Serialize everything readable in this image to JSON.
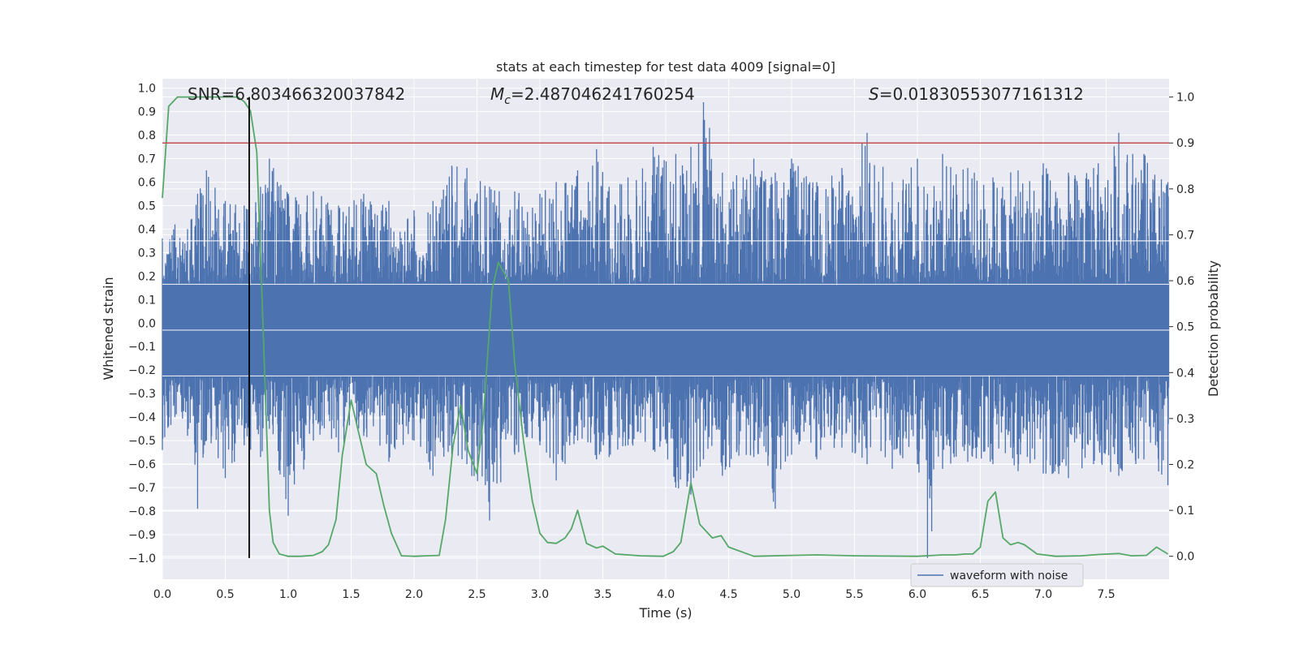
{
  "chart_data": {
    "type": "line",
    "title": "stats at each timestep for test data 4009 [signal=0]",
    "xlabel": "Time (s)",
    "ylabel_left": "Whitened strain",
    "ylabel_right": "Detection probability",
    "xlim": [
      0.0,
      8.0
    ],
    "ylim_left": [
      -1.09,
      1.04
    ],
    "ylim_right": [
      -0.05,
      1.04
    ],
    "x_ticks": [
      "0.0",
      "0.5",
      "1.0",
      "1.5",
      "2.0",
      "2.5",
      "3.0",
      "3.5",
      "4.0",
      "4.5",
      "5.0",
      "5.5",
      "6.0",
      "6.5",
      "7.0",
      "7.5"
    ],
    "y_ticks_left": [
      "1.0",
      "0.9",
      "0.8",
      "0.7",
      "0.6",
      "0.5",
      "0.4",
      "0.3",
      "0.2",
      "0.1",
      "0.0",
      "−0.1",
      "−0.2",
      "−0.3",
      "−0.4",
      "−0.5",
      "−0.6",
      "−0.7",
      "−0.8",
      "−0.9",
      "−1.0"
    ],
    "y_ticks_right": [
      "1.0",
      "0.9",
      "0.8",
      "0.7",
      "0.6",
      "0.5",
      "0.4",
      "0.3",
      "0.2",
      "0.1",
      "0.0"
    ],
    "annotations": {
      "snr": "SNR=6.803466320037842",
      "mc_symbol": "M",
      "mc_sub": "c",
      "mc_value": "=2.487046241760254",
      "s_symbol": "S",
      "s_value": "=0.01830553077161312"
    },
    "threshold": {
      "value": 0.9,
      "axis": "right",
      "color": "#c44e52"
    },
    "marker_time": {
      "value": 0.69,
      "color": "#000000"
    },
    "legend": {
      "label": "waveform with noise",
      "placement": "lower-right"
    },
    "series": [
      {
        "name": "waveform with noise",
        "axis": "left",
        "color": "#4c72b0",
        "envelope_points": [
          [
            0.0,
            0.36,
            -0.54
          ],
          [
            0.1,
            0.42,
            -0.4
          ],
          [
            0.2,
            0.4,
            -0.48
          ],
          [
            0.28,
            0.55,
            -0.79
          ],
          [
            0.35,
            0.65,
            -0.5
          ],
          [
            0.5,
            0.52,
            -0.66
          ],
          [
            0.65,
            0.5,
            -0.52
          ],
          [
            0.78,
            0.58,
            -0.57
          ],
          [
            0.85,
            0.7,
            -0.45
          ],
          [
            1.0,
            0.55,
            -0.82
          ],
          [
            1.2,
            0.56,
            -0.5
          ],
          [
            1.4,
            0.5,
            -0.55
          ],
          [
            1.6,
            0.55,
            -0.48
          ],
          [
            1.8,
            0.52,
            -0.59
          ],
          [
            2.0,
            0.48,
            -0.5
          ],
          [
            2.15,
            0.52,
            -0.65
          ],
          [
            2.3,
            0.67,
            -0.56
          ],
          [
            2.42,
            0.66,
            -0.6
          ],
          [
            2.6,
            0.58,
            -0.84
          ],
          [
            2.8,
            0.56,
            -0.56
          ],
          [
            3.0,
            0.55,
            -0.52
          ],
          [
            3.13,
            0.6,
            -0.67
          ],
          [
            3.3,
            0.65,
            -0.5
          ],
          [
            3.45,
            0.74,
            -0.58
          ],
          [
            3.55,
            0.58,
            -0.57
          ],
          [
            3.7,
            0.62,
            -0.52
          ],
          [
            3.9,
            0.75,
            -0.54
          ],
          [
            4.08,
            0.72,
            -0.7
          ],
          [
            4.2,
            0.75,
            -0.73
          ],
          [
            4.3,
            0.94,
            -0.58
          ],
          [
            4.45,
            0.64,
            -0.65
          ],
          [
            4.7,
            0.7,
            -0.57
          ],
          [
            4.87,
            0.64,
            -0.79
          ],
          [
            5.0,
            0.7,
            -0.56
          ],
          [
            5.2,
            0.6,
            -0.58
          ],
          [
            5.4,
            0.66,
            -0.53
          ],
          [
            5.6,
            0.81,
            -0.6
          ],
          [
            5.8,
            0.6,
            -0.62
          ],
          [
            6.0,
            0.7,
            -0.6
          ],
          [
            6.08,
            0.55,
            -1.0
          ],
          [
            6.2,
            0.72,
            -0.62
          ],
          [
            6.4,
            0.66,
            -0.59
          ],
          [
            6.6,
            0.62,
            -0.6
          ],
          [
            6.8,
            0.65,
            -0.63
          ],
          [
            7.0,
            0.68,
            -0.64
          ],
          [
            7.2,
            0.64,
            -0.66
          ],
          [
            7.4,
            0.66,
            -0.6
          ],
          [
            7.6,
            0.81,
            -0.65
          ],
          [
            7.8,
            0.72,
            -0.58
          ],
          [
            7.99,
            0.6,
            -0.69
          ]
        ]
      },
      {
        "name": "detection probability",
        "axis": "right",
        "color": "#55a868",
        "x": [
          0.0,
          0.05,
          0.12,
          0.2,
          0.3,
          0.4,
          0.5,
          0.6,
          0.65,
          0.7,
          0.75,
          0.8,
          0.85,
          0.88,
          0.93,
          1.0,
          1.1,
          1.2,
          1.27,
          1.32,
          1.38,
          1.43,
          1.5,
          1.55,
          1.62,
          1.7,
          1.76,
          1.82,
          1.9,
          2.0,
          2.1,
          2.2,
          2.25,
          2.31,
          2.37,
          2.43,
          2.5,
          2.55,
          2.62,
          2.67,
          2.75,
          2.8,
          2.87,
          2.94,
          3.0,
          3.06,
          3.13,
          3.2,
          3.25,
          3.3,
          3.37,
          3.45,
          3.5,
          3.6,
          3.8,
          3.98,
          4.06,
          4.12,
          4.2,
          4.27,
          4.37,
          4.44,
          4.5,
          4.7,
          5.0,
          5.2,
          5.5,
          6.0,
          6.2,
          6.3,
          6.38,
          6.44,
          6.5,
          6.56,
          6.62,
          6.68,
          6.74,
          6.8,
          6.85,
          6.95,
          7.1,
          7.3,
          7.45,
          7.6,
          7.7,
          7.82,
          7.9,
          7.99
        ],
        "y": [
          0.78,
          0.98,
          1.0,
          1.0,
          1.0,
          1.0,
          1.0,
          1.0,
          0.99,
          0.97,
          0.88,
          0.5,
          0.1,
          0.03,
          0.005,
          0.0,
          0.0,
          0.002,
          0.01,
          0.025,
          0.08,
          0.22,
          0.34,
          0.28,
          0.2,
          0.18,
          0.11,
          0.05,
          0.001,
          0.0,
          0.001,
          0.002,
          0.08,
          0.24,
          0.33,
          0.23,
          0.18,
          0.3,
          0.58,
          0.64,
          0.6,
          0.42,
          0.25,
          0.12,
          0.05,
          0.03,
          0.028,
          0.04,
          0.06,
          0.1,
          0.028,
          0.018,
          0.022,
          0.005,
          0.001,
          0.0,
          0.01,
          0.03,
          0.16,
          0.07,
          0.04,
          0.045,
          0.02,
          0.0,
          0.002,
          0.003,
          0.001,
          0.0,
          0.003,
          0.003,
          0.005,
          0.005,
          0.02,
          0.12,
          0.14,
          0.04,
          0.025,
          0.03,
          0.025,
          0.005,
          0.0,
          0.001,
          0.004,
          0.006,
          0.001,
          0.002,
          0.02,
          0.005
        ]
      }
    ]
  }
}
